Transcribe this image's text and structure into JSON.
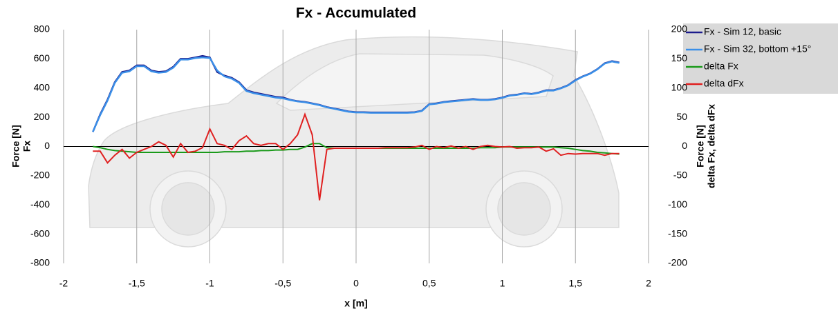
{
  "chart_data": {
    "type": "line",
    "title": "Fx - Accumulated",
    "xlabel": "x [m]",
    "ylabel": [
      "Force [N]",
      "Fx"
    ],
    "y2label": [
      "Force [N]",
      "delta Fx, delta dFx"
    ],
    "xlim": [
      -2,
      2
    ],
    "xticks": [
      -2,
      {
        "value": -1.5,
        "label": "-1,5"
      },
      -1,
      {
        "value": -0.5,
        "label": "-0,5"
      },
      0,
      {
        "value": 0.5,
        "label": "0,5"
      },
      1,
      {
        "value": 1.5,
        "label": "1,5"
      },
      2
    ],
    "ylim": [
      -800,
      800
    ],
    "yticks": [
      -800,
      -600,
      -400,
      -200,
      0,
      200,
      400,
      600,
      800
    ],
    "y2lim": [
      -200,
      200
    ],
    "y2ticks": [
      -200,
      -150,
      -100,
      -50,
      0,
      50,
      100,
      150,
      200
    ],
    "grid": "x",
    "legend": "right",
    "x": [
      -1.8,
      -1.75,
      -1.7,
      -1.65,
      -1.6,
      -1.55,
      -1.5,
      -1.45,
      -1.4,
      -1.35,
      -1.3,
      -1.25,
      -1.2,
      -1.15,
      -1.1,
      -1.05,
      -1.0,
      -0.95,
      -0.9,
      -0.85,
      -0.8,
      -0.75,
      -0.7,
      -0.65,
      -0.6,
      -0.55,
      -0.5,
      -0.45,
      -0.4,
      -0.35,
      -0.3,
      -0.25,
      -0.2,
      -0.15,
      -0.1,
      -0.05,
      0,
      0.05,
      0.1,
      0.15,
      0.2,
      0.25,
      0.3,
      0.35,
      0.4,
      0.45,
      0.5,
      0.55,
      0.6,
      0.65,
      0.7,
      0.75,
      0.8,
      0.85,
      0.9,
      0.95,
      1.0,
      1.05,
      1.1,
      1.15,
      1.2,
      1.25,
      1.3,
      1.35,
      1.4,
      1.45,
      1.5,
      1.55,
      1.6,
      1.65,
      1.7,
      1.75,
      1.8
    ],
    "series": [
      {
        "name": "Fx - Sim 12, basic",
        "color": "#1c1c8c",
        "values": [
          100,
          220,
          320,
          440,
          510,
          520,
          555,
          555,
          520,
          510,
          515,
          545,
          600,
          600,
          610,
          620,
          610,
          510,
          485,
          470,
          440,
          385,
          370,
          360,
          350,
          340,
          335,
          320,
          310,
          305,
          295,
          285,
          270,
          260,
          250,
          240,
          235,
          235,
          233,
          233,
          233,
          233,
          233,
          233,
          235,
          245,
          290,
          295,
          305,
          310,
          315,
          320,
          325,
          320,
          320,
          325,
          335,
          350,
          355,
          365,
          360,
          370,
          385,
          385,
          400,
          420,
          455,
          480,
          500,
          530,
          570,
          585,
          575
        ]
      },
      {
        "name": "Fx - Sim 32, bottom +15°",
        "color": "#3a8fe8",
        "values": [
          100,
          215,
          315,
          435,
          505,
          515,
          550,
          550,
          515,
          505,
          510,
          540,
          595,
          595,
          605,
          610,
          605,
          520,
          480,
          465,
          435,
          380,
          365,
          355,
          345,
          335,
          330,
          318,
          308,
          303,
          293,
          283,
          268,
          258,
          248,
          238,
          233,
          233,
          231,
          231,
          231,
          231,
          231,
          231,
          233,
          243,
          288,
          293,
          303,
          308,
          313,
          318,
          323,
          318,
          318,
          323,
          333,
          348,
          353,
          363,
          358,
          368,
          383,
          383,
          398,
          418,
          452,
          478,
          498,
          528,
          568,
          582,
          572
        ]
      },
      {
        "name": "delta Fx",
        "color": "#1a9a1a",
        "axis": "y2",
        "values": [
          0,
          -2,
          -5,
          -7,
          -8,
          -9,
          -10,
          -10,
          -10,
          -10,
          -10,
          -10,
          -10,
          -10,
          -10,
          -10,
          -10,
          -10,
          -9,
          -9,
          -9,
          -8,
          -8,
          -7,
          -7,
          -6,
          -6,
          -5,
          -5,
          -1,
          5,
          5,
          -2,
          -3,
          -3,
          -3,
          -3,
          -3,
          -3,
          -3,
          -3,
          -3,
          -3,
          -3,
          -3,
          -3,
          -3,
          -3,
          -3,
          -3,
          -3,
          -3,
          -3,
          -2,
          -2,
          -2,
          -1,
          -1,
          -1,
          -1,
          -1,
          -1,
          -1,
          -1,
          -2,
          -3,
          -5,
          -7,
          -8,
          -10,
          -11,
          -12,
          -13
        ]
      },
      {
        "name": "delta dFx",
        "color": "#e02020",
        "axis": "y2",
        "values": [
          -8,
          -8,
          -28,
          -15,
          -5,
          -20,
          -10,
          -5,
          0,
          8,
          2,
          -18,
          5,
          -10,
          -8,
          -2,
          30,
          5,
          2,
          -5,
          10,
          18,
          5,
          2,
          5,
          5,
          -5,
          5,
          20,
          55,
          20,
          -92,
          -5,
          -3,
          -3,
          -3,
          -3,
          -3,
          -3,
          -3,
          -2,
          -2,
          -2,
          -2,
          -1,
          2,
          -5,
          0,
          -2,
          1,
          -3,
          0,
          -5,
          0,
          2,
          0,
          -1,
          0,
          -3,
          -2,
          -2,
          -1,
          -8,
          -4,
          -15,
          -12,
          -13,
          -12,
          -12,
          -12,
          -15,
          -12,
          -12
        ]
      }
    ]
  }
}
